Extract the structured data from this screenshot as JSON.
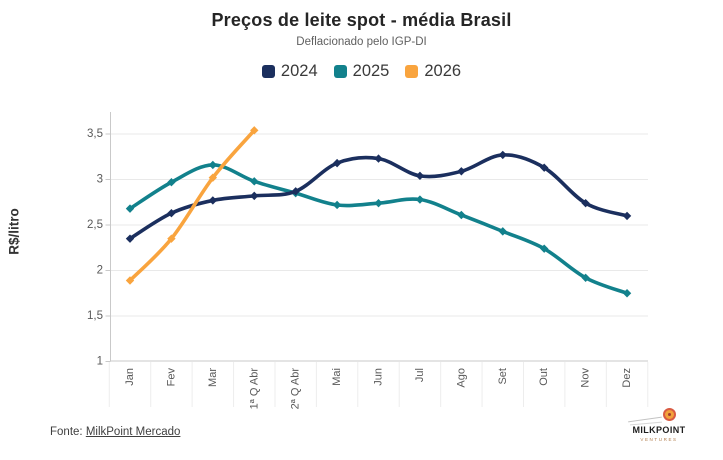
{
  "title": "Preços de leite spot - média Brasil",
  "subtitle": "Deflacionado pelo IGP-DI",
  "y_axis": {
    "label": "R$/litro",
    "ticks": [
      {
        "value": 3.5,
        "label": "3,5"
      },
      {
        "value": 3,
        "label": "3"
      },
      {
        "value": 2.5,
        "label": "2,5"
      },
      {
        "value": 2,
        "label": "2"
      },
      {
        "value": 1.5,
        "label": "1,5"
      },
      {
        "value": 1,
        "label": "1"
      }
    ]
  },
  "footer": {
    "prefix": "Fonte: ",
    "source_link": "MilkPoint Mercado"
  },
  "logo": {
    "title": "MILKPOINT",
    "subtitle": "VENTURES"
  },
  "chart_data": {
    "type": "line",
    "title": "Preços de leite spot - média Brasil",
    "subtitle": "Deflacionado pelo IGP-DI",
    "ylabel": "R$/litro",
    "ylim": [
      1,
      3.5
    ],
    "grid": "horizontal",
    "legend_position": "top",
    "decimal_separator": ",",
    "categories": [
      "Jan",
      "Fev",
      "Mar",
      "1ª Q Abr",
      "2ª Q Abr",
      "Mai",
      "Jun",
      "Jul",
      "Ago",
      "Set",
      "Out",
      "Nov",
      "Dez"
    ],
    "series": [
      {
        "name": "2024",
        "color": "#1b2f5e",
        "values": [
          2.35,
          2.63,
          2.77,
          2.82,
          2.87,
          3.18,
          3.23,
          3.04,
          3.09,
          3.27,
          3.13,
          2.74,
          2.6
        ]
      },
      {
        "name": "2025",
        "color": "#12818c",
        "values": [
          2.68,
          2.97,
          3.16,
          2.98,
          2.85,
          2.72,
          2.74,
          2.78,
          2.61,
          2.43,
          2.24,
          1.92,
          1.75
        ]
      },
      {
        "name": "2026",
        "color": "#f9a43e",
        "values": [
          1.89,
          2.35,
          3.02,
          3.54
        ]
      }
    ]
  }
}
